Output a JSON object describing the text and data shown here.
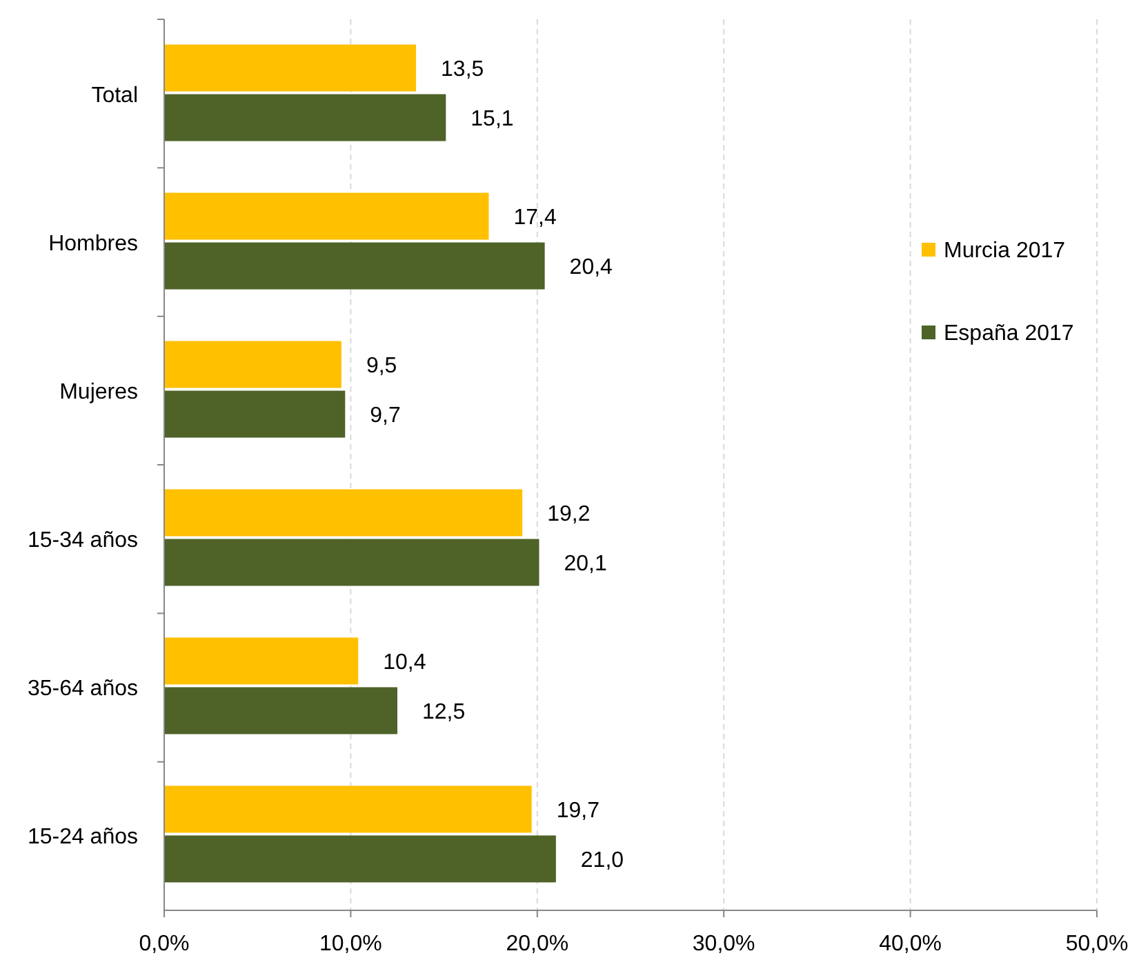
{
  "chart_data": {
    "type": "bar",
    "orientation": "horizontal",
    "categories": [
      "Total",
      "Hombres",
      "Mujeres",
      "15-34 años",
      "35-64 años",
      "15-24 años"
    ],
    "series": [
      {
        "name": "Murcia 2017",
        "color": "#ffc000",
        "values": [
          13.5,
          17.4,
          9.5,
          19.2,
          10.4,
          19.7
        ],
        "value_labels": [
          "13,5",
          "17,4",
          "9,5",
          "19,2",
          "10,4",
          "19,7"
        ]
      },
      {
        "name": "España 2017",
        "color": "#4f6228",
        "values": [
          15.1,
          20.4,
          9.7,
          20.1,
          12.5,
          21.0
        ],
        "value_labels": [
          "15,1",
          "20,4",
          "9,7",
          "20,1",
          "12,5",
          "21,0"
        ]
      }
    ],
    "xlim": [
      0,
      50
    ],
    "xticks": [
      {
        "value": 0,
        "label": "0,0%"
      },
      {
        "value": 10,
        "label": "10,0%"
      },
      {
        "value": 20,
        "label": "20,0%"
      },
      {
        "value": 30,
        "label": "30,0%"
      },
      {
        "value": 40,
        "label": "40,0%"
      },
      {
        "value": 50,
        "label": "50,0%"
      }
    ],
    "grid": "x",
    "legend": "right"
  }
}
